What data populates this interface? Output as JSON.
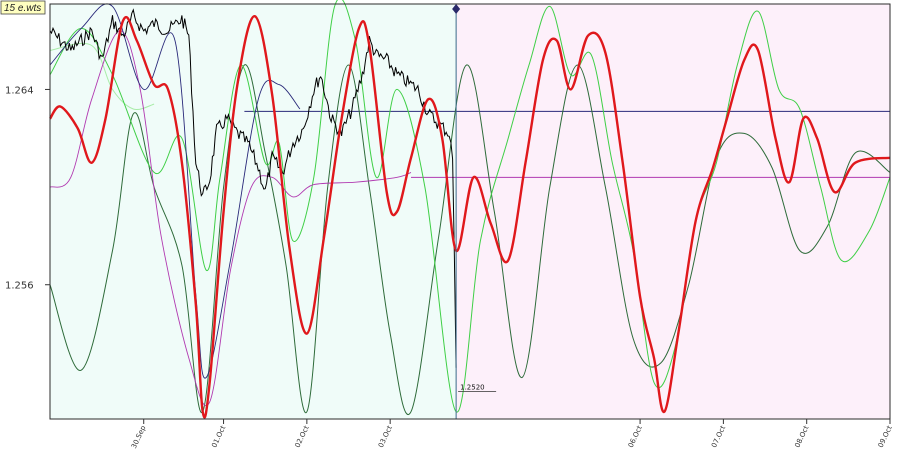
{
  "badge": "15 e.wts",
  "colors": {
    "past_bg": "#f0fcf9",
    "future_bg": "#fdf0fa",
    "frame": "#2b2b2b",
    "price": "#000000",
    "main": "#e0181c",
    "green_light": "#3fcf46",
    "green_dark": "#2e6b3a",
    "navy": "#2a2a7a",
    "magenta": "#b13ab1",
    "pale_green": "#a8eca8",
    "cursor": "#3a6b8a"
  },
  "chart_data": {
    "type": "line",
    "title": "",
    "xlabel": "",
    "ylabel": "",
    "x_axis": {
      "type": "time",
      "start": "2024-09-29T12:00",
      "end": "2024-10-09T14:00",
      "ticks": [
        {
          "label": "30.Sep",
          "t": "2024-09-30T15:00"
        },
        {
          "label": "01.Oct",
          "t": "2024-10-01T14:00"
        },
        {
          "label": "02.Oct",
          "t": "2024-10-02T14:00"
        },
        {
          "label": "03.Oct",
          "t": "2024-10-03T14:00"
        },
        {
          "label": "06.Oct",
          "t": "2024-10-06T14:00"
        },
        {
          "label": "07.Oct",
          "t": "2024-10-07T14:00"
        },
        {
          "label": "08.Oct",
          "t": "2024-10-08T14:00"
        },
        {
          "label": "09.Oct",
          "t": "2024-10-09T14:00"
        }
      ]
    },
    "y_axis": {
      "min": 1.2505,
      "max": 1.2675,
      "ticks": [
        1.264,
        1.256
      ]
    },
    "cursor": {
      "t": "2024-10-04T09:00",
      "price_label": "1.2520",
      "price": 1.252
    },
    "hlines": [
      {
        "name": "level-upper",
        "value": 1.2631,
        "from": "2024-10-01T20:00",
        "color_key": "navy"
      },
      {
        "name": "level-lower",
        "value": 1.2604,
        "from": "2024-10-03T20:00",
        "color_key": "magenta"
      }
    ],
    "grid": false,
    "series": [
      {
        "key": "price",
        "color_key": "price",
        "width": 1,
        "points": [
          [
            "2024-09-29T12:00",
            1.2664
          ],
          [
            "2024-09-29T18:00",
            1.2656
          ],
          [
            "2024-09-30T00:00",
            1.2664
          ],
          [
            "2024-09-30T03:00",
            1.2652
          ],
          [
            "2024-09-30T06:00",
            1.2668
          ],
          [
            "2024-09-30T09:00",
            1.2662
          ],
          [
            "2024-09-30T12:00",
            1.267
          ],
          [
            "2024-09-30T15:00",
            1.2664
          ],
          [
            "2024-09-30T18:00",
            1.2667
          ],
          [
            "2024-09-30T22:00",
            1.2664
          ],
          [
            "2024-10-01T02:00",
            1.2669
          ],
          [
            "2024-10-01T04:00",
            1.2662
          ],
          [
            "2024-10-01T06:00",
            1.261
          ],
          [
            "2024-10-01T08:00",
            1.2596
          ],
          [
            "2024-10-01T10:00",
            1.2603
          ],
          [
            "2024-10-01T12:00",
            1.2623
          ],
          [
            "2024-10-01T15:00",
            1.2628
          ],
          [
            "2024-10-01T18:00",
            1.2622
          ],
          [
            "2024-10-01T21:00",
            1.2618
          ],
          [
            "2024-10-02T00:00",
            1.2608
          ],
          [
            "2024-10-02T02:00",
            1.2598
          ],
          [
            "2024-10-02T04:00",
            1.2612
          ],
          [
            "2024-10-02T07:00",
            1.2606
          ],
          [
            "2024-10-02T10:00",
            1.2618
          ],
          [
            "2024-10-02T13:00",
            1.2624
          ],
          [
            "2024-10-02T16:00",
            1.264
          ],
          [
            "2024-10-02T18:00",
            1.2646
          ],
          [
            "2024-10-02T21:00",
            1.2628
          ],
          [
            "2024-10-03T00:00",
            1.2622
          ],
          [
            "2024-10-03T03:00",
            1.2632
          ],
          [
            "2024-10-03T06:00",
            1.2646
          ],
          [
            "2024-10-03T08:00",
            1.266
          ],
          [
            "2024-10-03T10:00",
            1.2654
          ],
          [
            "2024-10-03T13:00",
            1.2652
          ],
          [
            "2024-10-03T16:00",
            1.2646
          ],
          [
            "2024-10-03T19:00",
            1.2643
          ],
          [
            "2024-10-03T22:00",
            1.264
          ],
          [
            "2024-10-04T01:00",
            1.263
          ],
          [
            "2024-10-04T04:00",
            1.2626
          ],
          [
            "2024-10-04T07:00",
            1.2622
          ],
          [
            "2024-10-04T08:00",
            1.2612
          ],
          [
            "2024-10-04T09:00",
            1.2526
          ]
        ]
      },
      {
        "key": "main-wave",
        "color_key": "main",
        "width": 2.4,
        "points": [
          [
            "2024-09-29T12:00",
            1.2628
          ],
          [
            "2024-09-29T15:00",
            1.2633
          ],
          [
            "2024-09-29T20:00",
            1.2624
          ],
          [
            "2024-09-30T00:00",
            1.261
          ],
          [
            "2024-09-30T04:00",
            1.2628
          ],
          [
            "2024-09-30T09:00",
            1.2668
          ],
          [
            "2024-09-30T13:00",
            1.266
          ],
          [
            "2024-09-30T18:00",
            1.2642
          ],
          [
            "2024-09-30T22:00",
            1.264
          ],
          [
            "2024-10-01T02:00",
            1.261
          ],
          [
            "2024-10-01T06:00",
            1.2552
          ],
          [
            "2024-10-01T08:00",
            1.2508
          ],
          [
            "2024-10-01T10:00",
            1.252
          ],
          [
            "2024-10-01T14:00",
            1.259
          ],
          [
            "2024-10-01T18:00",
            1.2642
          ],
          [
            "2024-10-01T23:00",
            1.267
          ],
          [
            "2024-10-02T04:00",
            1.2638
          ],
          [
            "2024-10-02T09:00",
            1.2575
          ],
          [
            "2024-10-02T14:00",
            1.254
          ],
          [
            "2024-10-02T19:00",
            1.258
          ],
          [
            "2024-10-03T00:00",
            1.2628
          ],
          [
            "2024-10-03T05:00",
            1.2665
          ],
          [
            "2024-10-03T08:00",
            1.2658
          ],
          [
            "2024-10-03T13:00",
            1.2598
          ],
          [
            "2024-10-03T16:00",
            1.259
          ],
          [
            "2024-10-03T20:00",
            1.2612
          ],
          [
            "2024-10-04T01:00",
            1.2636
          ],
          [
            "2024-10-04T05:00",
            1.262
          ],
          [
            "2024-10-04T09:00",
            1.2574
          ],
          [
            "2024-10-04T14:00",
            1.2604
          ],
          [
            "2024-10-04T19:00",
            1.2585
          ],
          [
            "2024-10-05T00:00",
            1.257
          ],
          [
            "2024-10-05T05:00",
            1.261
          ],
          [
            "2024-10-05T10:00",
            1.2652
          ],
          [
            "2024-10-05T14:00",
            1.266
          ],
          [
            "2024-10-05T18:00",
            1.264
          ],
          [
            "2024-10-05T23:00",
            1.2662
          ],
          [
            "2024-10-06T04:00",
            1.2655
          ],
          [
            "2024-10-06T09:00",
            1.261
          ],
          [
            "2024-10-06T14:00",
            1.2555
          ],
          [
            "2024-10-06T18:00",
            1.253
          ],
          [
            "2024-10-06T21:00",
            1.2508
          ],
          [
            "2024-10-07T01:00",
            1.254
          ],
          [
            "2024-10-07T06:00",
            1.2586
          ],
          [
            "2024-10-07T11:00",
            1.2608
          ],
          [
            "2024-10-07T15:00",
            1.2628
          ],
          [
            "2024-10-07T20:00",
            1.2652
          ],
          [
            "2024-10-08T00:00",
            1.2656
          ],
          [
            "2024-10-08T05:00",
            1.262
          ],
          [
            "2024-10-08T09:00",
            1.2602
          ],
          [
            "2024-10-08T13:00",
            1.2628
          ],
          [
            "2024-10-08T17:00",
            1.262
          ],
          [
            "2024-10-08T22:00",
            1.2598
          ],
          [
            "2024-10-09T04:00",
            1.261
          ],
          [
            "2024-10-09T14:00",
            1.2612
          ]
        ]
      },
      {
        "key": "green-light-wave",
        "color_key": "green_light",
        "width": 1,
        "points": [
          [
            "2024-09-29T12:00",
            1.2646
          ],
          [
            "2024-09-29T21:00",
            1.2665
          ],
          [
            "2024-09-30T06:00",
            1.2646
          ],
          [
            "2024-09-30T18:00",
            1.2606
          ],
          [
            "2024-10-01T02:00",
            1.262
          ],
          [
            "2024-10-01T09:00",
            1.2566
          ],
          [
            "2024-10-01T13:00",
            1.2604
          ],
          [
            "2024-10-01T19:00",
            1.265
          ],
          [
            "2024-10-02T02:00",
            1.261
          ],
          [
            "2024-10-02T06:00",
            1.2618
          ],
          [
            "2024-10-02T10:00",
            1.2578
          ],
          [
            "2024-10-02T16:00",
            1.2604
          ],
          [
            "2024-10-02T22:00",
            1.2674
          ],
          [
            "2024-10-03T04:00",
            1.266
          ],
          [
            "2024-10-03T10:00",
            1.2604
          ],
          [
            "2024-10-03T16:00",
            1.264
          ],
          [
            "2024-10-04T00:00",
            1.26
          ],
          [
            "2024-10-04T09:00",
            1.2508
          ],
          [
            "2024-10-04T16:00",
            1.2578
          ],
          [
            "2024-10-05T00:00",
            1.262
          ],
          [
            "2024-10-05T06:00",
            1.265
          ],
          [
            "2024-10-05T12:00",
            1.2674
          ],
          [
            "2024-10-05T18:00",
            1.2646
          ],
          [
            "2024-10-06T00:00",
            1.2654
          ],
          [
            "2024-10-06T06:00",
            1.261
          ],
          [
            "2024-10-06T12:00",
            1.2574
          ],
          [
            "2024-10-06T18:00",
            1.252
          ],
          [
            "2024-10-07T00:00",
            1.2534
          ],
          [
            "2024-10-07T06:00",
            1.2586
          ],
          [
            "2024-10-07T12:00",
            1.261
          ],
          [
            "2024-10-07T18:00",
            1.265
          ],
          [
            "2024-10-08T00:00",
            1.2672
          ],
          [
            "2024-10-08T06:00",
            1.264
          ],
          [
            "2024-10-08T12:00",
            1.2632
          ],
          [
            "2024-10-08T18:00",
            1.26
          ],
          [
            "2024-10-09T00:00",
            1.257
          ],
          [
            "2024-10-09T08:00",
            1.2582
          ],
          [
            "2024-10-09T14:00",
            1.2604
          ]
        ]
      },
      {
        "key": "green-dark-wave",
        "color_key": "green_dark",
        "width": 1,
        "points": [
          [
            "2024-09-29T12:00",
            1.256
          ],
          [
            "2024-09-29T21:00",
            1.2525
          ],
          [
            "2024-09-30T06:00",
            1.2574
          ],
          [
            "2024-09-30T12:00",
            1.263
          ],
          [
            "2024-09-30T18:00",
            1.26
          ],
          [
            "2024-10-01T02:00",
            1.2568
          ],
          [
            "2024-10-01T08:00",
            1.2508
          ],
          [
            "2024-10-01T14:00",
            1.26
          ],
          [
            "2024-10-01T20:00",
            1.265
          ],
          [
            "2024-10-02T02:00",
            1.2614
          ],
          [
            "2024-10-02T08:00",
            1.2568
          ],
          [
            "2024-10-02T14:00",
            1.2508
          ],
          [
            "2024-10-02T20:00",
            1.26
          ],
          [
            "2024-10-03T02:00",
            1.265
          ],
          [
            "2024-10-03T08:00",
            1.26
          ],
          [
            "2024-10-03T14:00",
            1.254
          ],
          [
            "2024-10-03T20:00",
            1.2508
          ],
          [
            "2024-10-04T04:00",
            1.258
          ],
          [
            "2024-10-04T12:00",
            1.265
          ],
          [
            "2024-10-04T20:00",
            1.259
          ],
          [
            "2024-10-05T04:00",
            1.2522
          ],
          [
            "2024-10-05T12:00",
            1.26
          ],
          [
            "2024-10-05T20:00",
            1.265
          ],
          [
            "2024-10-06T04:00",
            1.26
          ],
          [
            "2024-10-06T12:00",
            1.2538
          ],
          [
            "2024-10-06T20:00",
            1.2528
          ],
          [
            "2024-10-07T04:00",
            1.256
          ],
          [
            "2024-10-07T12:00",
            1.2612
          ],
          [
            "2024-10-07T20:00",
            1.2622
          ],
          [
            "2024-10-08T04:00",
            1.2608
          ],
          [
            "2024-10-08T12:00",
            1.2574
          ],
          [
            "2024-10-08T20:00",
            1.2584
          ],
          [
            "2024-10-09T04:00",
            1.2614
          ],
          [
            "2024-10-09T14:00",
            1.2606
          ]
        ]
      },
      {
        "key": "navy-wave",
        "color_key": "navy",
        "width": 0.9,
        "points": [
          [
            "2024-09-29T12:00",
            1.265
          ],
          [
            "2024-09-29T21:00",
            1.2665
          ],
          [
            "2024-09-30T06:00",
            1.2674
          ],
          [
            "2024-09-30T15:00",
            1.264
          ],
          [
            "2024-10-01T00:00",
            1.266
          ],
          [
            "2024-10-01T06:00",
            1.2556
          ],
          [
            "2024-10-01T09:00",
            1.2522
          ],
          [
            "2024-10-01T16:00",
            1.257
          ],
          [
            "2024-10-02T00:00",
            1.2636
          ],
          [
            "2024-10-02T06:00",
            1.2642
          ],
          [
            "2024-10-02T12:00",
            1.2632
          ]
        ]
      },
      {
        "key": "magenta-wave",
        "color_key": "magenta",
        "width": 0.9,
        "points": [
          [
            "2024-09-29T12:00",
            1.26
          ],
          [
            "2024-09-29T18:00",
            1.2604
          ],
          [
            "2024-09-30T00:00",
            1.2636
          ],
          [
            "2024-09-30T08:00",
            1.2664
          ],
          [
            "2024-09-30T14:00",
            1.264
          ],
          [
            "2024-09-30T20:00",
            1.258
          ],
          [
            "2024-10-01T04:00",
            1.253
          ],
          [
            "2024-10-01T10:00",
            1.2512
          ],
          [
            "2024-10-01T16:00",
            1.2566
          ],
          [
            "2024-10-01T22:00",
            1.26
          ],
          [
            "2024-10-02T04:00",
            1.2604
          ],
          [
            "2024-10-02T10:00",
            1.2596
          ],
          [
            "2024-10-02T16:00",
            1.2601
          ],
          [
            "2024-10-03T04:00",
            1.2602
          ],
          [
            "2024-10-03T16:00",
            1.2604
          ],
          [
            "2024-10-03T20:00",
            1.2606
          ]
        ]
      },
      {
        "key": "pale-green-wave",
        "color_key": "pale_green",
        "width": 1,
        "points": [
          [
            "2024-09-29T12:00",
            1.2656
          ],
          [
            "2024-09-30T00:00",
            1.2658
          ],
          [
            "2024-09-30T06:00",
            1.264
          ],
          [
            "2024-09-30T12:00",
            1.2632
          ],
          [
            "2024-09-30T18:00",
            1.2634
          ]
        ]
      }
    ]
  }
}
